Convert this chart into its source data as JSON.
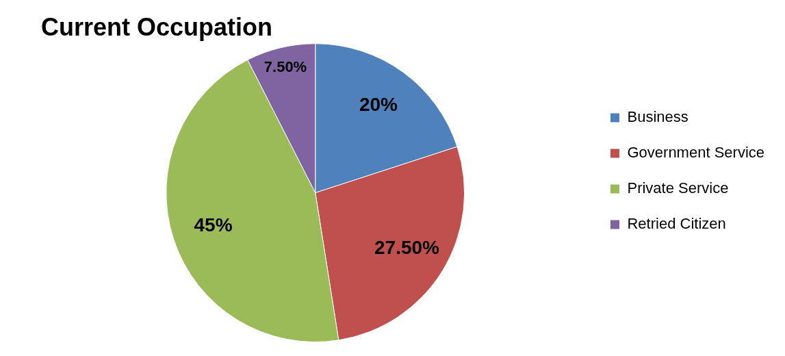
{
  "chart_data": {
    "type": "pie",
    "title": "Current Occupation",
    "categories": [
      "Business",
      "Government Service",
      "Private Service",
      "Retried Citizen"
    ],
    "values": [
      20,
      27.5,
      45,
      7.5
    ],
    "colors": [
      "#4f81bd",
      "#c0504d",
      "#9bbb59",
      "#8064a2"
    ],
    "value_labels": [
      "20%",
      "27.50%",
      "45%",
      "7.50%"
    ],
    "legend": "right"
  }
}
